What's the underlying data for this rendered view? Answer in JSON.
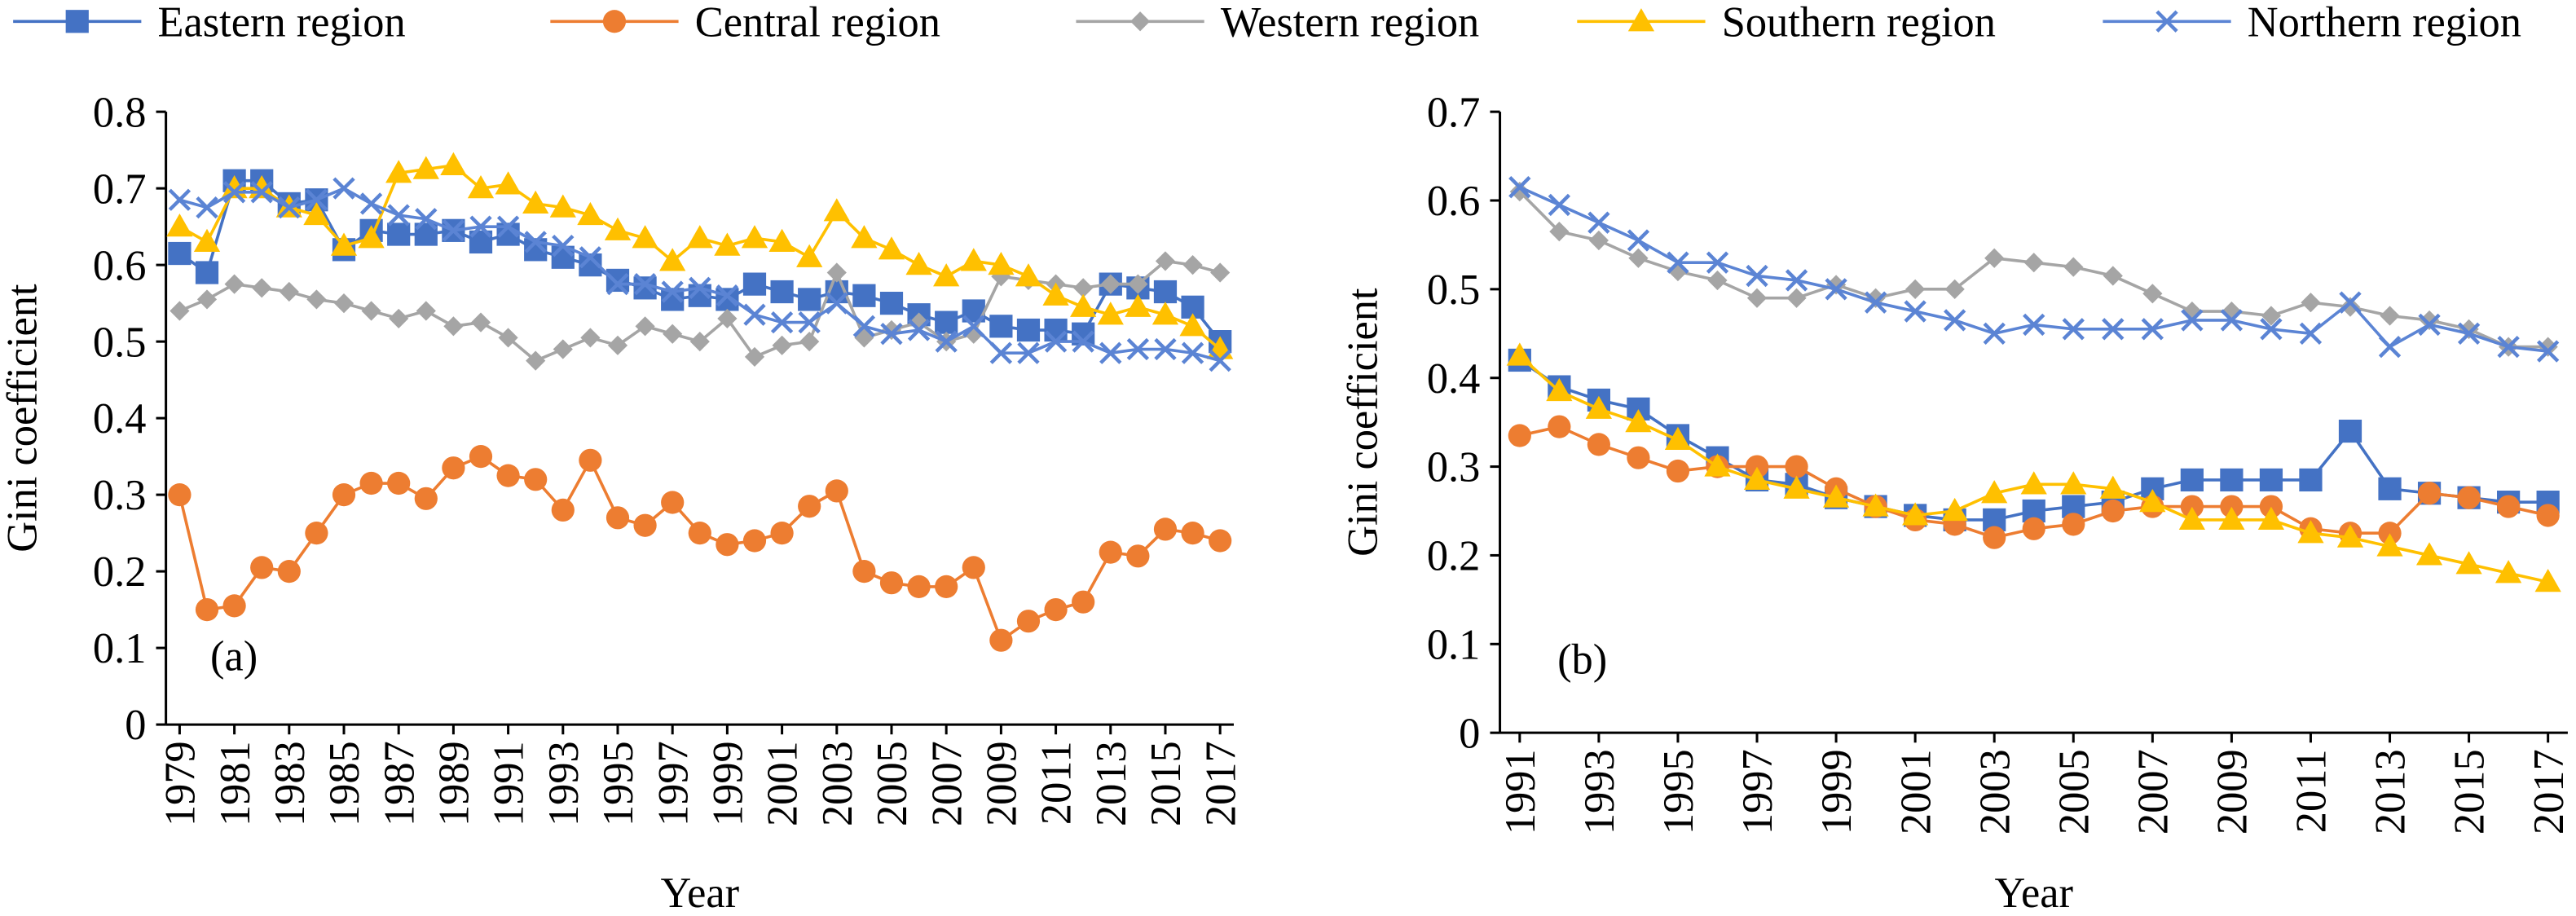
{
  "chart_data": [
    {
      "type": "line",
      "annotation": "(a)",
      "x_label": "Year",
      "y_label": "Gini coefficient",
      "x": [
        1979,
        1980,
        1981,
        1982,
        1983,
        1984,
        1985,
        1986,
        1987,
        1988,
        1989,
        1990,
        1991,
        1992,
        1993,
        1994,
        1995,
        1996,
        1997,
        1998,
        1999,
        2000,
        2001,
        2002,
        2003,
        2004,
        2005,
        2006,
        2007,
        2008,
        2009,
        2010,
        2011,
        2012,
        2013,
        2014,
        2015,
        2016,
        2017
      ],
      "xlim": [
        1978.5,
        2017.5
      ],
      "xticks": [
        1979,
        1981,
        1983,
        1985,
        1987,
        1989,
        1991,
        1993,
        1995,
        1997,
        1999,
        2001,
        2003,
        2005,
        2007,
        2009,
        2011,
        2013,
        2015,
        2017
      ],
      "ylim": [
        0,
        0.8
      ],
      "yticks": [
        0,
        0.1,
        0.2,
        0.3,
        0.4,
        0.5,
        0.6,
        0.7,
        0.8
      ],
      "series": [
        {
          "name": "Eastern region",
          "color": "#4472c4",
          "marker": "square",
          "values": [
            0.615,
            0.59,
            0.71,
            0.71,
            0.68,
            0.685,
            0.62,
            0.645,
            0.64,
            0.64,
            0.645,
            0.63,
            0.64,
            0.62,
            0.61,
            0.6,
            0.58,
            0.57,
            0.555,
            0.56,
            0.555,
            0.575,
            0.565,
            0.555,
            0.565,
            0.56,
            0.55,
            0.535,
            0.525,
            0.54,
            0.52,
            0.515,
            0.515,
            0.51,
            0.575,
            0.57,
            0.565,
            0.545,
            0.5
          ]
        },
        {
          "name": "Central region",
          "color": "#ed7d31",
          "marker": "circle",
          "values": [
            0.3,
            0.15,
            0.155,
            0.205,
            0.2,
            0.25,
            0.3,
            0.315,
            0.315,
            0.295,
            0.335,
            0.35,
            0.325,
            0.32,
            0.28,
            0.345,
            0.27,
            0.26,
            0.29,
            0.25,
            0.235,
            0.24,
            0.25,
            0.285,
            0.305,
            0.2,
            0.185,
            0.18,
            0.18,
            0.205,
            0.11,
            0.135,
            0.15,
            0.16,
            0.225,
            0.22,
            0.255,
            0.25,
            0.24
          ]
        },
        {
          "name": "Western region",
          "color": "#a5a5a5",
          "marker": "diamond",
          "values": [
            0.54,
            0.555,
            0.575,
            0.57,
            0.565,
            0.555,
            0.55,
            0.54,
            0.53,
            0.54,
            0.52,
            0.525,
            0.505,
            0.475,
            0.49,
            0.505,
            0.495,
            0.52,
            0.51,
            0.5,
            0.53,
            0.48,
            0.495,
            0.5,
            0.59,
            0.505,
            0.515,
            0.525,
            0.5,
            0.51,
            0.585,
            0.58,
            0.575,
            0.57,
            0.575,
            0.575,
            0.605,
            0.6,
            0.59
          ]
        },
        {
          "name": "Southern region",
          "color": "#ffc000",
          "marker": "triangle",
          "values": [
            0.65,
            0.63,
            0.7,
            0.7,
            0.675,
            0.665,
            0.625,
            0.635,
            0.72,
            0.725,
            0.73,
            0.7,
            0.705,
            0.68,
            0.675,
            0.665,
            0.645,
            0.635,
            0.605,
            0.635,
            0.625,
            0.635,
            0.63,
            0.61,
            0.67,
            0.635,
            0.62,
            0.6,
            0.585,
            0.605,
            0.6,
            0.585,
            0.56,
            0.545,
            0.535,
            0.545,
            0.535,
            0.52,
            0.49
          ]
        },
        {
          "name": "Northern region",
          "color": "#5b84d4",
          "marker": "x",
          "values": [
            0.685,
            0.675,
            0.695,
            0.695,
            0.675,
            0.685,
            0.7,
            0.68,
            0.665,
            0.66,
            0.645,
            0.65,
            0.65,
            0.63,
            0.625,
            0.61,
            0.575,
            0.575,
            0.565,
            0.57,
            0.56,
            0.535,
            0.525,
            0.525,
            0.55,
            0.52,
            0.51,
            0.515,
            0.5,
            0.52,
            0.485,
            0.485,
            0.5,
            0.5,
            0.485,
            0.49,
            0.49,
            0.485,
            0.475
          ]
        }
      ]
    },
    {
      "type": "line",
      "annotation": "(b)",
      "x_label": "Year",
      "y_label": "Gini coefficient",
      "x": [
        1991,
        1992,
        1993,
        1994,
        1995,
        1996,
        1997,
        1998,
        1999,
        2000,
        2001,
        2002,
        2003,
        2004,
        2005,
        2006,
        2007,
        2008,
        2009,
        2010,
        2011,
        2012,
        2013,
        2014,
        2015,
        2016,
        2017
      ],
      "xlim": [
        1990.5,
        2017.5
      ],
      "xticks": [
        1991,
        1993,
        1995,
        1997,
        1999,
        2001,
        2003,
        2005,
        2007,
        2009,
        2011,
        2013,
        2015,
        2017
      ],
      "ylim": [
        0,
        0.7
      ],
      "yticks": [
        0,
        0.1,
        0.2,
        0.3,
        0.4,
        0.5,
        0.6,
        0.7
      ],
      "series": [
        {
          "color": "#4472c4",
          "marker": "square",
          "values": [
            0.42,
            0.39,
            0.375,
            0.365,
            0.335,
            0.31,
            0.285,
            0.28,
            0.265,
            0.255,
            0.245,
            0.24,
            0.24,
            0.25,
            0.255,
            0.26,
            0.275,
            0.285,
            0.285,
            0.285,
            0.285,
            0.34,
            0.275,
            0.27,
            0.265,
            0.26,
            0.26
          ]
        },
        {
          "color": "#ed7d31",
          "marker": "circle",
          "values": [
            0.335,
            0.345,
            0.325,
            0.31,
            0.295,
            0.3,
            0.3,
            0.3,
            0.275,
            0.255,
            0.24,
            0.235,
            0.22,
            0.23,
            0.235,
            0.25,
            0.255,
            0.255,
            0.255,
            0.255,
            0.23,
            0.225,
            0.225,
            0.27,
            0.265,
            0.255,
            0.245
          ]
        },
        {
          "color": "#a5a5a5",
          "marker": "diamond",
          "values": [
            0.61,
            0.565,
            0.555,
            0.535,
            0.52,
            0.51,
            0.49,
            0.49,
            0.505,
            0.49,
            0.5,
            0.5,
            0.535,
            0.53,
            0.525,
            0.515,
            0.495,
            0.475,
            0.475,
            0.47,
            0.485,
            0.48,
            0.47,
            0.465,
            0.455,
            0.435,
            0.435
          ]
        },
        {
          "color": "#ffc000",
          "marker": "triangle",
          "values": [
            0.425,
            0.385,
            0.365,
            0.35,
            0.33,
            0.3,
            0.285,
            0.275,
            0.265,
            0.255,
            0.245,
            0.25,
            0.27,
            0.28,
            0.28,
            0.275,
            0.26,
            0.24,
            0.24,
            0.24,
            0.225,
            0.22,
            0.21,
            0.2,
            0.19,
            0.18,
            0.17
          ]
        },
        {
          "color": "#5b84d4",
          "marker": "x",
          "values": [
            0.615,
            0.595,
            0.575,
            0.555,
            0.53,
            0.53,
            0.515,
            0.51,
            0.5,
            0.485,
            0.475,
            0.465,
            0.45,
            0.46,
            0.455,
            0.455,
            0.455,
            0.465,
            0.465,
            0.455,
            0.45,
            0.485,
            0.435,
            0.46,
            0.45,
            0.435,
            0.43
          ]
        }
      ]
    }
  ]
}
